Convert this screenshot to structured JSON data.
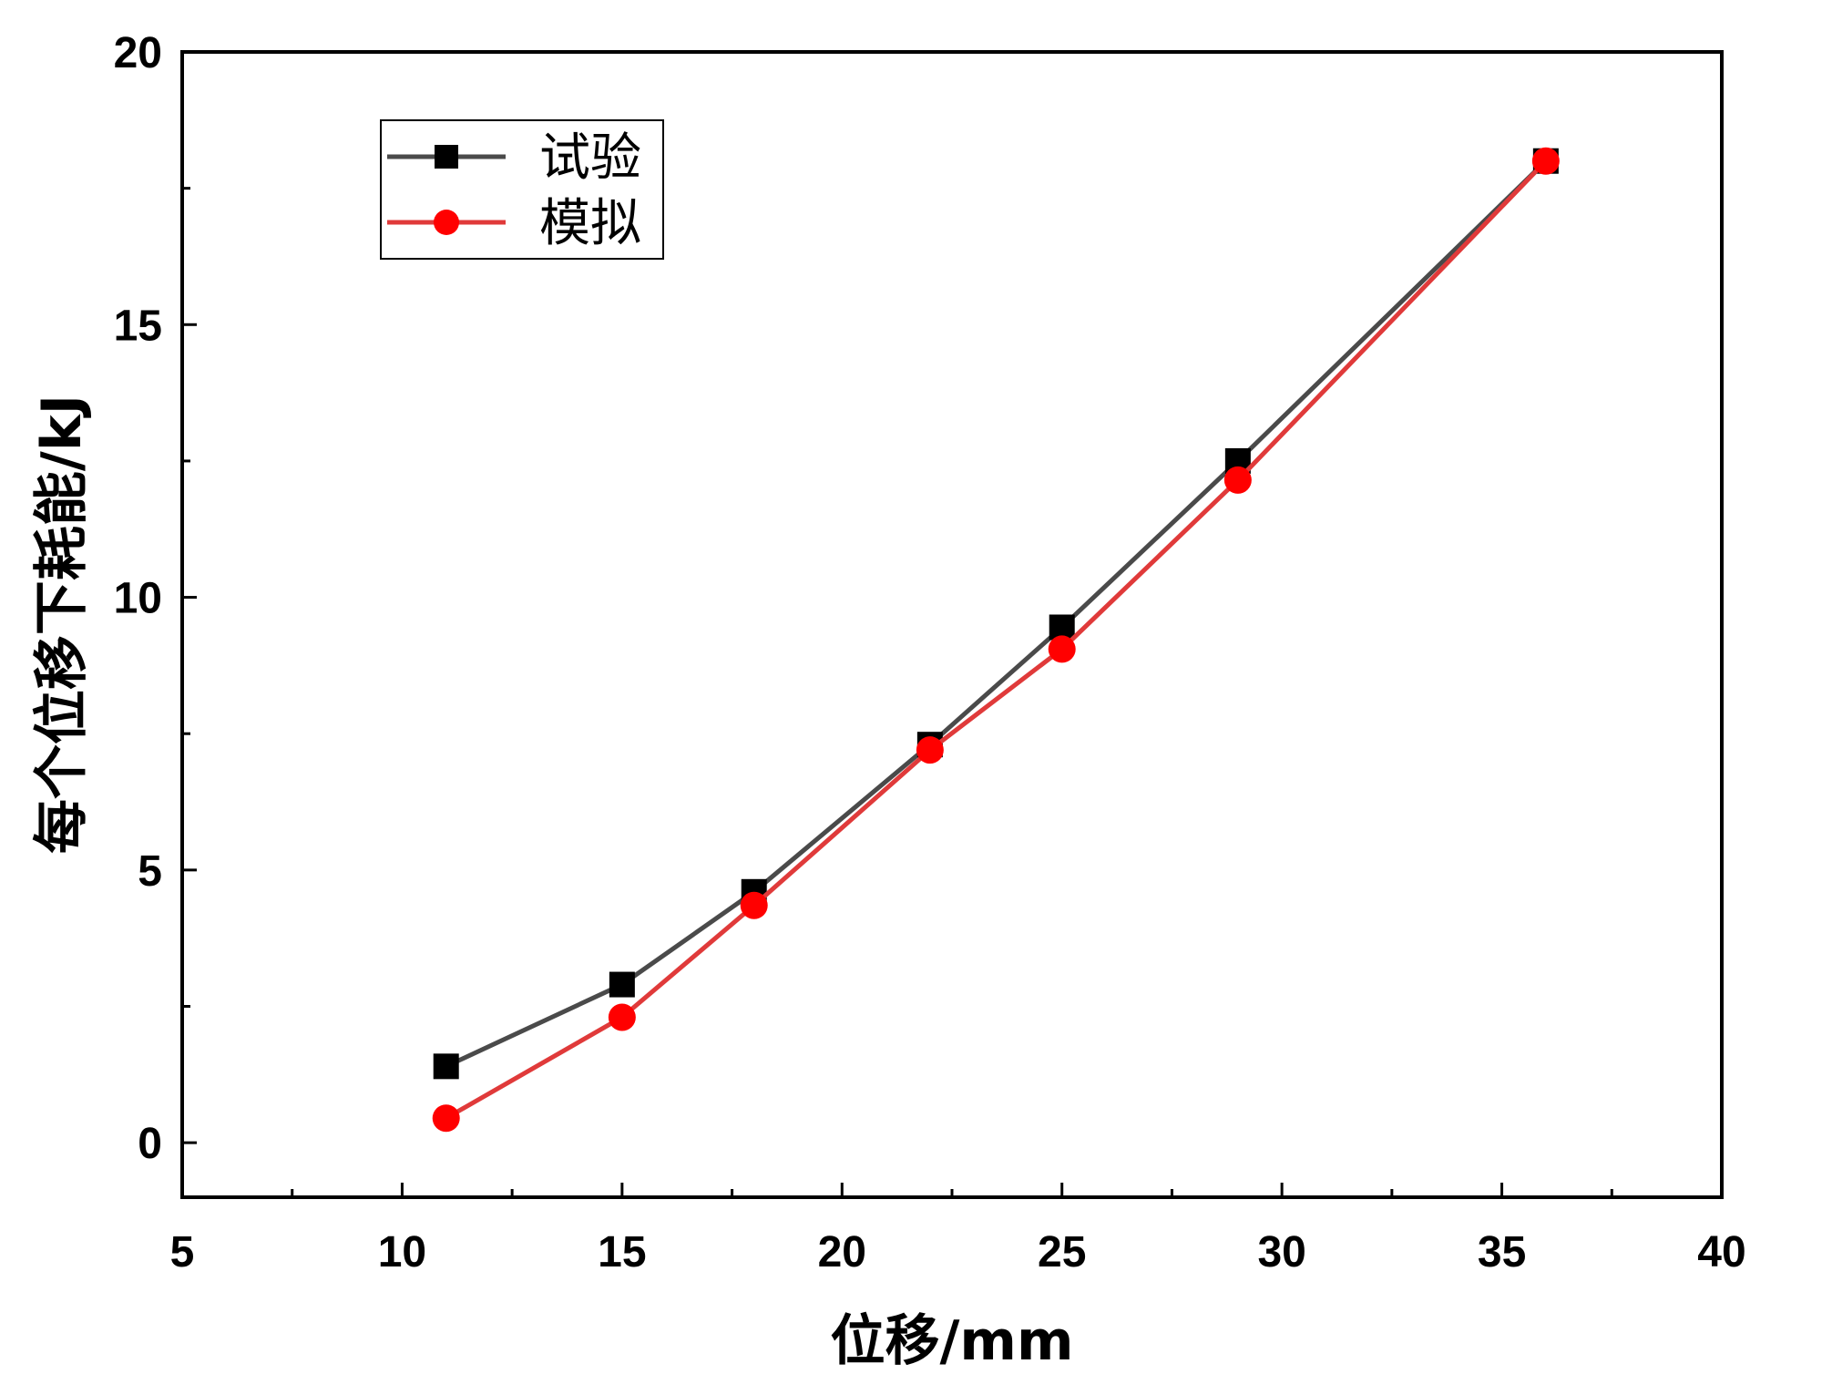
{
  "chart_data": {
    "type": "line",
    "title": "",
    "xlabel": "位移/mm",
    "ylabel": "每个位移下耗能/kJ",
    "xlim": [
      5,
      40
    ],
    "ylim": [
      -1,
      20
    ],
    "x_ticks": [
      "5",
      "10",
      "15",
      "20",
      "25",
      "30",
      "35",
      "40"
    ],
    "y_ticks": [
      "0",
      "5",
      "10",
      "15",
      "20"
    ],
    "x_tick_values": [
      5,
      10,
      15,
      20,
      25,
      30,
      35,
      40
    ],
    "y_tick_values": [
      0,
      5,
      10,
      15,
      20
    ],
    "grid": false,
    "legend_position": "top-left",
    "series": [
      {
        "name": "试验",
        "color": "#4a4a4a",
        "marker_color": "#000000",
        "marker": "square",
        "x": [
          11,
          15,
          18,
          22,
          25,
          29,
          36
        ],
        "y": [
          1.4,
          2.9,
          4.6,
          7.3,
          9.45,
          12.5,
          18.0
        ]
      },
      {
        "name": "模拟",
        "color": "#e03a3a",
        "marker_color": "#ff0000",
        "marker": "circle",
        "x": [
          11,
          15,
          18,
          22,
          25,
          29,
          36
        ],
        "y": [
          0.45,
          2.3,
          4.35,
          7.2,
          9.05,
          12.15,
          18.0
        ]
      }
    ]
  }
}
